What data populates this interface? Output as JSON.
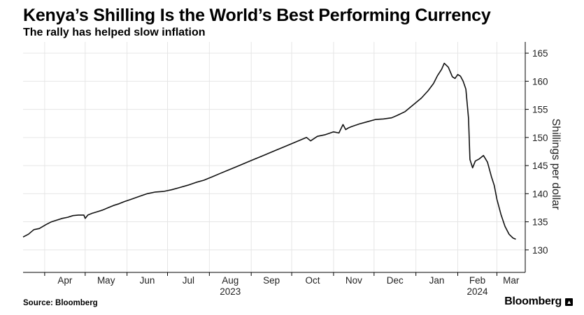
{
  "header": {
    "title": "Kenya’s Shilling Is the World’s Best Performing Currency",
    "subtitle": "The rally has helped slow inflation"
  },
  "footer": {
    "source": "Source: Bloomberg",
    "brand": "Bloomberg"
  },
  "chart_data": {
    "type": "line",
    "title": "Kenya’s Shilling Is the World’s Best Performing Currency",
    "subtitle": "The rally has helped slow inflation",
    "ylabel": "Shillings per dollar",
    "xlabel": "",
    "y_axis_side": "right",
    "ylim": [
      126,
      167
    ],
    "yticks": [
      130,
      135,
      140,
      145,
      150,
      155,
      160,
      165
    ],
    "grid": true,
    "legend": "none",
    "x_tick_labels": [
      "Apr",
      "May",
      "Jun",
      "Jul",
      "Aug",
      "Sep",
      "Oct",
      "Nov",
      "Dec",
      "Jan",
      "Feb",
      "Mar"
    ],
    "year_labels": [
      {
        "label": "2023",
        "under": "Aug"
      },
      {
        "label": "2024",
        "under": "Feb"
      }
    ],
    "line_color": "#111111",
    "series": [
      {
        "x": [
          "2023-03-16",
          "2023-03-20",
          "2023-03-24",
          "2023-03-28",
          "2023-04-02",
          "2023-04-06",
          "2023-04-10",
          "2023-04-14",
          "2023-04-18",
          "2023-04-22",
          "2023-04-26",
          "2023-04-30",
          "2023-05-01",
          "2023-05-03",
          "2023-05-06",
          "2023-05-10",
          "2023-05-14",
          "2023-05-18",
          "2023-05-22",
          "2023-05-26",
          "2023-05-30",
          "2023-06-04",
          "2023-06-10",
          "2023-06-16",
          "2023-06-22",
          "2023-06-28",
          "2023-07-04",
          "2023-07-10",
          "2023-07-16",
          "2023-07-22",
          "2023-07-28",
          "2023-08-03",
          "2023-08-09",
          "2023-08-15",
          "2023-08-21",
          "2023-08-27",
          "2023-09-02",
          "2023-09-08",
          "2023-09-14",
          "2023-09-20",
          "2023-09-26",
          "2023-10-02",
          "2023-10-08",
          "2023-10-12",
          "2023-10-15",
          "2023-10-20",
          "2023-10-26",
          "2023-11-01",
          "2023-11-05",
          "2023-11-08",
          "2023-11-10",
          "2023-11-12",
          "2023-11-14",
          "2023-11-20",
          "2023-11-26",
          "2023-12-02",
          "2023-12-08",
          "2023-12-14",
          "2023-12-18",
          "2023-12-24",
          "2023-12-30",
          "2024-01-05",
          "2024-01-10",
          "2024-01-14",
          "2024-01-17",
          "2024-01-20",
          "2024-01-22",
          "2024-01-25",
          "2024-01-28",
          "2024-01-30",
          "2024-02-01",
          "2024-02-03",
          "2024-02-05",
          "2024-02-07",
          "2024-02-09",
          "2024-02-10",
          "2024-02-12",
          "2024-02-14",
          "2024-02-17",
          "2024-02-20",
          "2024-02-23",
          "2024-02-26",
          "2024-02-28",
          "2024-03-01",
          "2024-03-04",
          "2024-03-07",
          "2024-03-10",
          "2024-03-13",
          "2024-03-15"
        ],
        "y": [
          132.3,
          132.8,
          133.6,
          133.8,
          134.5,
          135.0,
          135.3,
          135.6,
          135.8,
          136.1,
          136.2,
          136.2,
          135.6,
          136.2,
          136.5,
          136.8,
          137.1,
          137.5,
          137.9,
          138.2,
          138.6,
          139.0,
          139.5,
          140.0,
          140.3,
          140.4,
          140.7,
          141.1,
          141.5,
          142.0,
          142.4,
          143.0,
          143.6,
          144.2,
          144.8,
          145.4,
          146.0,
          146.6,
          147.2,
          147.8,
          148.4,
          149.0,
          149.6,
          150.0,
          149.4,
          150.2,
          150.5,
          151.0,
          150.8,
          152.3,
          151.4,
          151.7,
          151.9,
          152.4,
          152.8,
          153.2,
          153.3,
          153.5,
          153.9,
          154.6,
          155.8,
          157.0,
          158.3,
          159.6,
          161.0,
          162.1,
          163.2,
          162.5,
          160.8,
          160.5,
          161.2,
          160.9,
          160.0,
          158.6,
          153.4,
          146.1,
          144.6,
          145.8,
          146.2,
          146.8,
          145.6,
          143.0,
          141.5,
          139.0,
          136.3,
          134.2,
          132.8,
          132.1,
          131.9
        ]
      }
    ]
  }
}
